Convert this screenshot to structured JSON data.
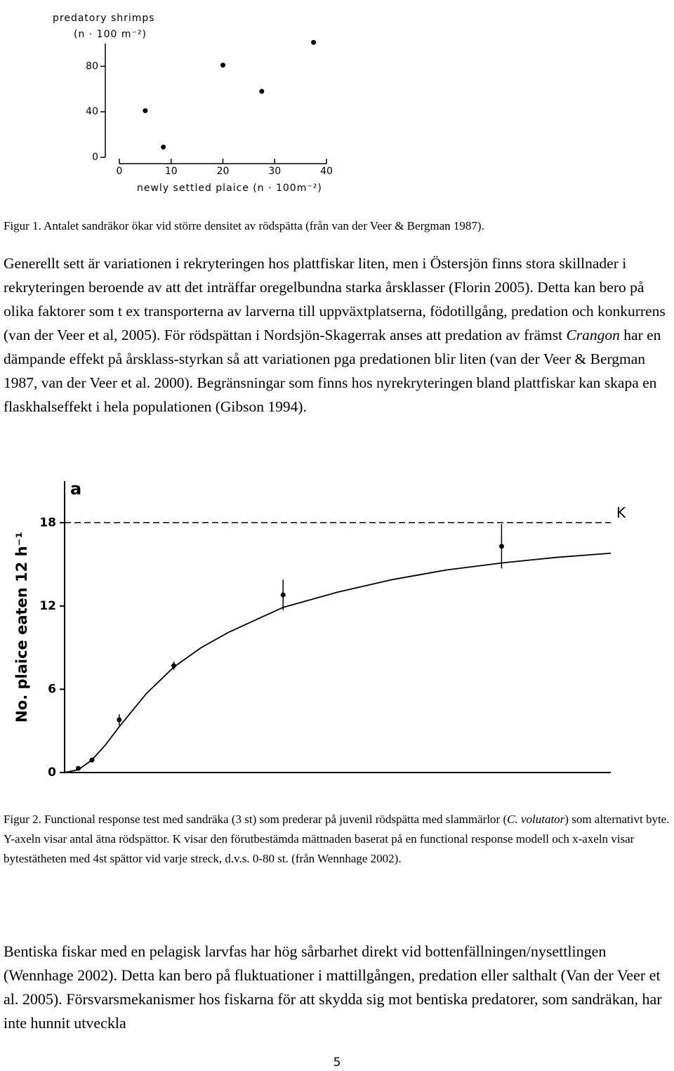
{
  "chart_data": [
    {
      "type": "scatter",
      "ylabel": [
        "predatory shrimps",
        "(n · 100 m⁻²)"
      ],
      "xlabel": "newly settled plaice (n · 100m⁻²)",
      "x": [
        5,
        8.5,
        20,
        27.5,
        37.5
      ],
      "values": [
        41,
        9,
        81,
        58,
        101
      ],
      "xlim": [
        0,
        40
      ],
      "ylim": [
        0,
        100
      ],
      "xticks": [
        0,
        10,
        20,
        30,
        40
      ],
      "yticks": [
        0,
        40,
        80
      ],
      "color": "#000000"
    },
    {
      "type": "scatter",
      "panel_label": "a",
      "ylabel": "No. plaice eaten 12 h⁻¹",
      "x": [
        2,
        4,
        8,
        16,
        32,
        64
      ],
      "values": [
        0.3,
        0.9,
        3.8,
        7.7,
        12.8,
        16.3
      ],
      "errors": [
        0.1,
        0.1,
        0.4,
        0.3,
        1.1,
        1.6
      ],
      "fit": {
        "x": [
          0,
          2,
          4,
          6,
          8,
          12,
          16,
          20,
          24,
          32,
          40,
          48,
          56,
          64,
          72,
          80
        ],
        "values": [
          0,
          0.2,
          0.9,
          2.0,
          3.3,
          5.7,
          7.6,
          9.0,
          10.1,
          11.9,
          13.0,
          13.9,
          14.6,
          15.1,
          15.5,
          15.8
        ]
      },
      "reference_line": {
        "label": "K",
        "value": 18
      },
      "xlim": [
        0,
        80
      ],
      "ylim": [
        0,
        21
      ],
      "yticks": [
        0,
        6,
        12,
        18
      ],
      "color": "#000000"
    }
  ],
  "document": {
    "caption_1": "Figur 1. Antalet sandräkor ökar vid större densitet av rödspätta (från van der Veer & Bergman 1987).",
    "paragraph_1": [
      "Generellt sett är variationen i rekryteringen hos plattfiskar liten, men i Östersjön finns stora skillnader i rekryteringen beroende av att det inträffar oregelbundna starka årsklasser (Florin 2005). Detta kan bero på olika faktorer som t ex transporterna av larverna till uppväxtplatserna, födotillgång, predation och konkurrens (van der Veer et al, 2005). För rödspättan i Nordsjön-Skagerrak anses att predation av främst ",
      {
        "text": "Crangon",
        "italic": true
      },
      " har en dämpande effekt på årsklass-styrkan så att variationen pga predationen blir liten (van der Veer & Bergman 1987, van der Veer et al. 2000). Begränsningar som finns hos nyrekryteringen bland plattfiskar kan skapa en flaskhalseffekt i hela populationen (Gibson 1994)."
    ],
    "caption_2": [
      "Figur 2. Functional response test med sandräka (3 st) som prederar på juvenil rödspätta med slammärlor (",
      {
        "text": "C. volutator",
        "italic": true
      },
      ") som alternativt byte. Y-axeln visar antal ätna rödspättor. K visar den förutbestämda mättnaden baserat på en functional response modell och x-axeln visar bytestätheten med 4st spättor vid varje streck, d.v.s. 0-80 st. (från Wennhage 2002)."
    ],
    "paragraph_2": [
      "Bentiska fiskar med en pelagisk larvfas har hög sårbarhet direkt vid bottenfällningen/nysettlingen (Wennhage 2002). Detta kan bero på fluktuationer i mattillgången, predation eller salthalt (Van der Veer et al. 2005). Försvarsmekanismer hos fiskarna för att skydda sig mot bentiska predatorer, som sandräkan, har inte hunnit utveckla"
    ],
    "page_number": "5"
  }
}
